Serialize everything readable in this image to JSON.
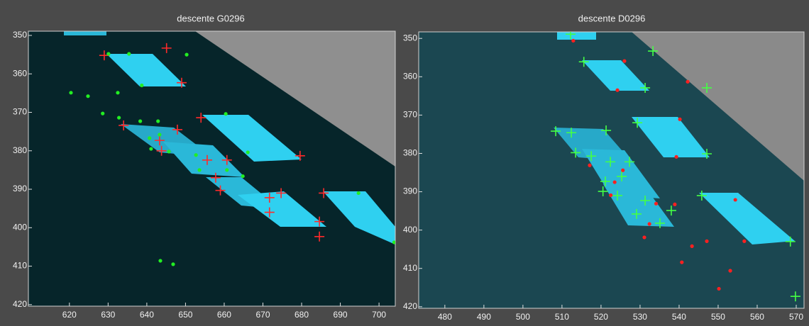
{
  "chart_data": [
    {
      "type": "scatter",
      "title": "descente G0296",
      "xlim": [
        609.4,
        704.2
      ],
      "ylim": [
        420.4,
        348.9
      ],
      "xticks": [
        620,
        630,
        640,
        650,
        660,
        670,
        680,
        690,
        700
      ],
      "yticks": [
        350,
        360,
        370,
        380,
        390,
        400,
        410,
        420
      ],
      "series": [
        {
          "color": "#ff2a2a",
          "marker": "plus",
          "x": [
            629.0,
            645.1,
            649.0,
            647.9,
            654.0,
            634.0,
            643.3,
            643.8,
            655.6,
            660.7,
            657.8,
            659.0,
            679.6,
            671.7,
            674.7,
            671.7,
            685.7,
            684.6,
            684.6
          ],
          "values": [
            355.2,
            353.3,
            362.3,
            374.5,
            371.4,
            373.4,
            377.3,
            380.0,
            382.4,
            382.4,
            387.0,
            390.3,
            381.3,
            392.2,
            391.0,
            396.0,
            391.0,
            398.4,
            402.3
          ]
        },
        {
          "color": "#22ee22",
          "marker": "dot",
          "x": [
            630.1,
            635.4,
            650.3,
            638.7,
            620.4,
            624.8,
            632.5,
            628.6,
            632.8,
            638.3,
            642.9,
            660.4,
            640.7,
            643.3,
            641.1,
            645.7,
            652.7,
            666.1,
            653.6,
            660.7,
            664.8,
            694.7,
            703.9,
            643.5,
            646.8
          ],
          "values": [
            354.8,
            354.8,
            355.0,
            363.0,
            364.9,
            365.8,
            364.9,
            370.3,
            371.4,
            372.3,
            372.3,
            370.4,
            376.7,
            375.8,
            379.5,
            380.2,
            381.1,
            380.4,
            385.0,
            385.0,
            386.6,
            391.0,
            403.8,
            408.6,
            409.5
          ]
        }
      ]
    },
    {
      "type": "scatter",
      "title": "descente D0296",
      "xlim": [
        473.3,
        572.0
      ],
      "ylim": [
        420.4,
        348.3
      ],
      "xticks": [
        480,
        490,
        500,
        510,
        520,
        530,
        540,
        550,
        560,
        570
      ],
      "yticks": [
        350,
        360,
        370,
        380,
        390,
        400,
        410,
        420
      ],
      "series": [
        {
          "color": "#44ff44",
          "marker": "plus",
          "x": [
            512.2,
            533.3,
            515.6,
            531.3,
            547.1,
            508.4,
            512.4,
            521.3,
            529.3,
            513.5,
            517.5,
            522.4,
            527.3,
            547.1,
            521.1,
            525.3,
            520.5,
            524.2,
            531.3,
            545.8,
            538.0,
            529.1,
            535.1,
            568.5,
            569.8
          ],
          "values": [
            348.9,
            353.3,
            356.1,
            362.9,
            362.9,
            374.2,
            374.6,
            374.0,
            372.0,
            379.8,
            380.7,
            382.2,
            382.2,
            380.1,
            387.3,
            386.0,
            389.9,
            391.0,
            392.3,
            391.0,
            394.9,
            395.8,
            398.2,
            403.0,
            417.3
          ]
        },
        {
          "color": "#ff2020",
          "marker": "dot",
          "x": [
            512.9,
            526.0,
            524.2,
            542.2,
            540.2,
            539.3,
            517.1,
            525.6,
            523.5,
            522.5,
            534.1,
            538.9,
            554.4,
            532.4,
            531.1,
            556.7,
            547.1,
            543.3,
            540.7,
            553.1,
            550.2
          ],
          "values": [
            350.6,
            355.9,
            363.5,
            361.3,
            371.1,
            380.9,
            383.1,
            384.4,
            387.5,
            390.9,
            393.1,
            393.3,
            392.1,
            398.4,
            401.9,
            402.9,
            402.9,
            404.2,
            408.4,
            410.6,
            415.3
          ]
        }
      ]
    }
  ]
}
